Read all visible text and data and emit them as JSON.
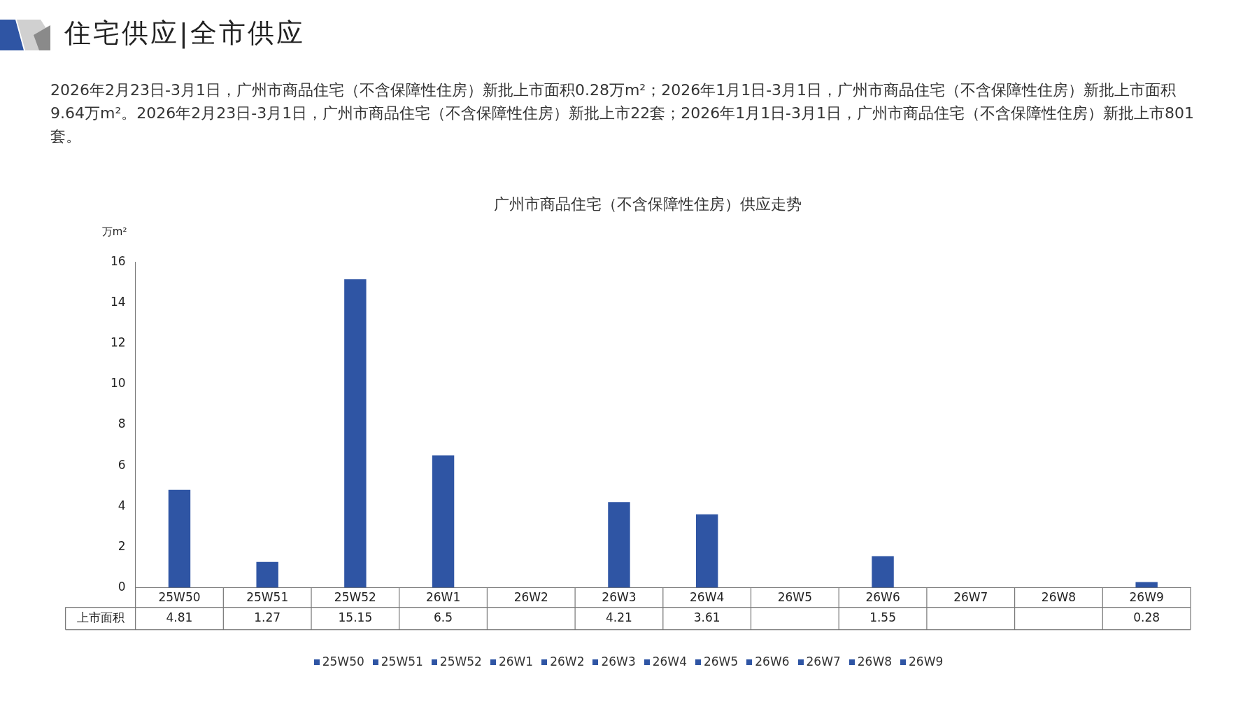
{
  "chart_data": {
    "type": "bar",
    "title": "广州市商品住宅（不含保障性住房）供应走势",
    "ylabel": "万m²",
    "annotations": [
      "住宅供应|全市供应",
      "2026年2月23日-3月1日，广州市商品住宅（不含保障性住房）新批上市面积0.28万m²；2026年1月1日-3月1日，广州市商品住宅（不含保障性住房）新批上市面积9.64万m²。2026年2月23日-3月1日，广州市商品住宅（不含保障性住房）新批上市22套；2026年1月1日-3月1日，广州市商品住宅（不含保障性住房）新批上市801套。"
    ],
    "categories": [
      "25W50",
      "25W51",
      "25W52",
      "26W1",
      "26W2",
      "26W3",
      "26W4",
      "26W5",
      "26W6",
      "26W7",
      "26W8",
      "26W9"
    ],
    "series": [
      {
        "name": "上市面积",
        "color": "#2f55a4",
        "values": [
          4.81,
          1.27,
          15.15,
          6.5,
          null,
          4.21,
          3.61,
          null,
          1.55,
          null,
          null,
          0.28
        ]
      }
    ],
    "ylim": [
      0,
      16
    ],
    "yticks": [
      0,
      2,
      4,
      6,
      8,
      10,
      12,
      14,
      16
    ],
    "data_labels": true,
    "legend": "bottom",
    "grid": false
  }
}
